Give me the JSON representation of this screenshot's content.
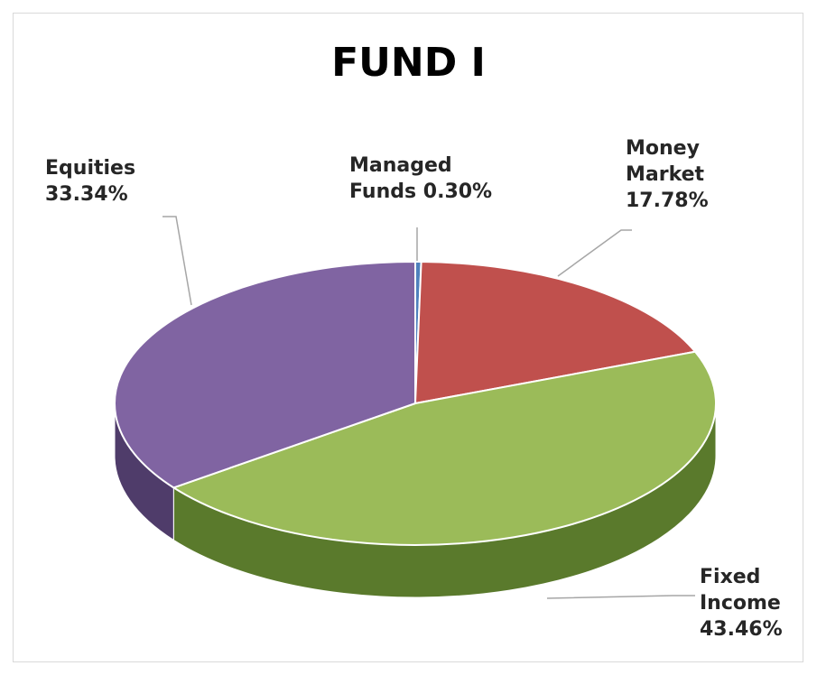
{
  "chart_data": {
    "type": "pie",
    "title": "FUND I",
    "categories": [
      "Managed Funds",
      "Money Market",
      "Fixed Income",
      "Equities"
    ],
    "values": [
      0.3,
      17.78,
      43.46,
      33.34
    ],
    "value_labels": [
      "0.30%",
      "17.78%",
      "43.46%",
      "33.34%"
    ],
    "colors": [
      "#4f81bd",
      "#c0504d",
      "#9bbb59",
      "#8064a2"
    ],
    "side_colors": [
      "#2f4f7a",
      "#7a2f2d",
      "#5a7a2c",
      "#4f3c6a"
    ]
  }
}
